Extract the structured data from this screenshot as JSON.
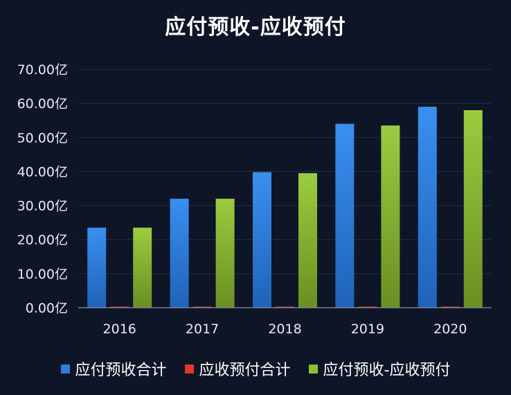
{
  "chart_data": {
    "type": "bar",
    "title": "应付预收-应收预付",
    "xlabel": "",
    "ylabel": "",
    "ylim": [
      0,
      70
    ],
    "y_ticks": [
      "0.00亿",
      "10.00亿",
      "20.00亿",
      "30.00亿",
      "40.00亿",
      "50.00亿",
      "60.00亿",
      "70.00亿"
    ],
    "categories": [
      "2016",
      "2017",
      "2018",
      "2019",
      "2020"
    ],
    "series": [
      {
        "name": "应付预收合计",
        "color": "#2e7fd8",
        "values": [
          23.5,
          32.0,
          39.8,
          54.0,
          59.0
        ]
      },
      {
        "name": "应收预付合计",
        "color": "#e0362b",
        "values": [
          0.3,
          0.3,
          0.3,
          0.3,
          0.3
        ]
      },
      {
        "name": "应付预收-应收预付",
        "color": "#8fbf35",
        "values": [
          23.5,
          32.0,
          39.5,
          53.5,
          58.0
        ]
      }
    ],
    "grid": true,
    "legend_position": "bottom"
  }
}
